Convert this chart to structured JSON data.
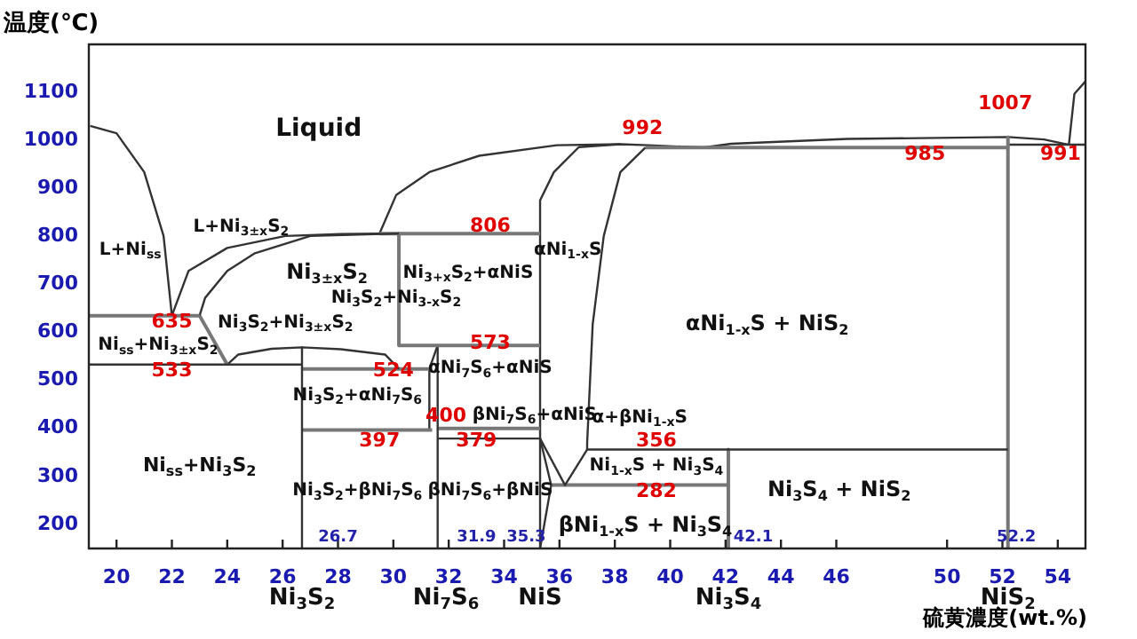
{
  "chart_data": {
    "type": "line",
    "xlabel": "硫黄濃度(wt.%)",
    "ylabel": "温度(℃)",
    "marker": "none",
    "line_style": "solid",
    "xlim": [
      19,
      55
    ],
    "ylim": [
      150,
      1200
    ],
    "xticks": [
      20,
      22,
      24,
      26,
      28,
      30,
      32,
      34,
      36,
      38,
      40,
      42,
      44,
      46,
      50,
      52,
      54
    ],
    "yticks": [
      200,
      300,
      400,
      500,
      600,
      700,
      800,
      900,
      1000,
      1100
    ],
    "series": [
      {
        "color": "#333333",
        "x": [
          19.05,
          20,
          21,
          21.7,
          22
        ],
        "values": [
          1030,
          1015,
          934,
          801,
          635
        ]
      },
      {
        "color": "#777777",
        "x": [
          19,
          23
        ],
        "values": [
          635,
          635
        ]
      },
      {
        "color": "#333333",
        "x": [
          19,
          26.7
        ],
        "values": [
          533,
          533
        ]
      },
      {
        "color": "#333333",
        "x": [
          22,
          22.6,
          24.0,
          26.1,
          28.1,
          29.5
        ],
        "values": [
          635,
          728,
          776,
          801,
          805,
          806
        ]
      },
      {
        "color": "#333333",
        "x": [
          23,
          23.2,
          24,
          25,
          27,
          30.2
        ],
        "values": [
          635,
          672,
          728,
          765,
          801,
          806
        ]
      },
      {
        "color": "#777777",
        "x": [
          23,
          24
        ],
        "values": [
          635,
          533
        ]
      },
      {
        "color": "#333333",
        "x": [
          24,
          24.4,
          25.6,
          26.7,
          28.1,
          29.7,
          30.2
        ],
        "values": [
          533,
          554,
          566,
          569,
          565,
          554,
          524
        ]
      },
      {
        "color": "#333333",
        "x": [
          26.7,
          26.7
        ],
        "values": [
          569,
          150
        ]
      },
      {
        "color": "#777777",
        "x": [
          26.7,
          31.3
        ],
        "values": [
          524,
          524
        ]
      },
      {
        "color": "#777777",
        "x": [
          26.7,
          31.4
        ],
        "values": [
          397,
          397
        ]
      },
      {
        "color": "#777777",
        "x": [
          29.5,
          35.3
        ],
        "values": [
          806,
          806
        ]
      },
      {
        "color": "#777777",
        "x": [
          30.2,
          30.2
        ],
        "values": [
          806,
          573
        ]
      },
      {
        "color": "#777777",
        "x": [
          30.2,
          35.3
        ],
        "values": [
          573,
          573
        ]
      },
      {
        "color": "#333333",
        "x": [
          31.6,
          31.6
        ],
        "values": [
          573,
          150
        ]
      },
      {
        "color": "#333333",
        "x": [
          31.6,
          31.3,
          31.3
        ],
        "values": [
          573,
          524,
          397
        ]
      },
      {
        "color": "#777777",
        "x": [
          31.6,
          35.3
        ],
        "values": [
          400,
          400
        ]
      },
      {
        "color": "#333333",
        "x": [
          31.6,
          35.3
        ],
        "values": [
          379,
          379
        ]
      },
      {
        "color": "#333333",
        "x": [
          38.2,
          36.7,
          35.8,
          35.3,
          35.3,
          35.3
        ],
        "values": [
          992,
          986,
          934,
          875,
          820,
          150
        ]
      },
      {
        "color": "#333333",
        "x": [
          39.1,
          38.2,
          37.6,
          37.2,
          37.0,
          37.0
        ],
        "values": [
          985,
          934,
          801,
          617,
          370,
          356
        ]
      },
      {
        "color": "#333333",
        "x": [
          35.3,
          35.7,
          35.3
        ],
        "values": [
          379,
          282,
          150
        ]
      },
      {
        "color": "#333333",
        "x": [
          35.3,
          36.2,
          37.0
        ],
        "values": [
          379,
          282,
          356
        ]
      },
      {
        "color": "#777777",
        "x": [
          35.7,
          42.1
        ],
        "values": [
          282,
          282
        ]
      },
      {
        "color": "#333333",
        "x": [
          37.0,
          52.2
        ],
        "values": [
          356,
          356
        ]
      },
      {
        "color": "#777777",
        "x": [
          42.1,
          42.1
        ],
        "values": [
          356,
          150
        ]
      },
      {
        "color": "#777777",
        "x": [
          39.1,
          52.2
        ],
        "values": [
          985,
          985
        ]
      },
      {
        "color": "#777777",
        "x": [
          52.2,
          52.2
        ],
        "values": [
          1007,
          150
        ]
      },
      {
        "color": "#333333",
        "x": [
          52.2,
          55
        ],
        "values": [
          991,
          991
        ]
      },
      {
        "color": "#333333",
        "x": [
          54.4,
          54.6,
          55
        ],
        "values": [
          991,
          1097,
          1123
        ]
      },
      {
        "color": "#333333",
        "x": [
          29.5,
          30.1,
          31.3,
          33.1,
          35.9,
          38.2,
          39.2,
          41.2,
          42.2,
          46.4,
          52.2,
          53.5,
          54.4
        ],
        "values": [
          806,
          886,
          934,
          968,
          990,
          992,
          990,
          985,
          993,
          1003,
          1007,
          1002,
          991
        ]
      }
    ],
    "annotations": [
      "Liquid",
      "L+Ni$_{ss}$",
      "L+Ni$_{3±x}$S$_{2}$",
      "Ni$_{3±x}$S$_{2}$",
      "Ni$_{3}$S$_{2}$+Ni$_{3-x}$S$_{2}$",
      "Ni$_{3}$S$_{2}$+Ni$_{3±x}$S$_{2}$",
      "Ni$_{ss}$+Ni$_{3±x}$S$_{2}$",
      "Ni$_{3}$S$_{2}$+αNi$_{7}$S$_{6}$",
      "Ni$_{ss}$+Ni$_{3}$S$_{2}$",
      "Ni$_{3}$S$_{2}$+βNi$_{7}$S$_{6}$",
      "Ni$_{3+x}$S$_{2}$+αNiS",
      "αNi$_{7}$S$_{6}$+αNiS",
      "βNi$_{7}$S$_{6}$+αNiS",
      "βNi$_{7}$S$_{6}$+βNiS",
      "αNi$_{1-x}$S",
      "αNi$_{1-x}$S + NiS$_{2}$",
      "α+βNi$_{1-x}$S",
      "Ni$_{1-x}$S + Ni$_{3}$S$_{4}$",
      "βNi$_{1-x}$S + Ni$_{3}$S$_{4}$",
      "Ni$_{3}$S$_{4}$ + NiS$_{2}$",
      "635",
      "533",
      "524",
      "806",
      "573",
      "400",
      "397",
      "379",
      "992",
      "985",
      "1007",
      "991",
      "356",
      "282",
      "26.7",
      "31.9",
      "35.3",
      "42.1",
      "52.2",
      "Ni$_{3}$S$_{2}$",
      "Ni$_{7}$S$_{6}$",
      "NiS",
      "Ni$_{3}$S$_{4}$",
      "NiS$_{2}$"
    ]
  }
}
